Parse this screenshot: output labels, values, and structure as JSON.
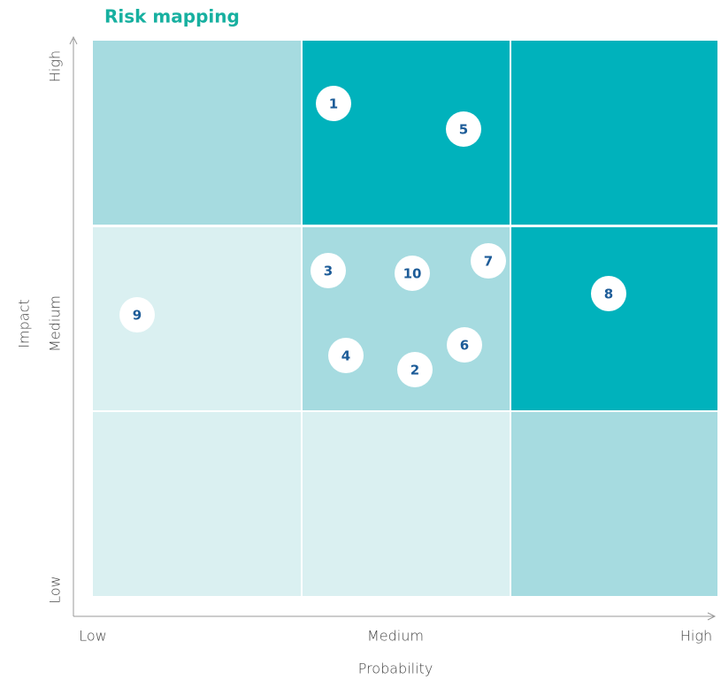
{
  "title": "Risk mapping",
  "axes": {
    "x": {
      "title": "Probability",
      "labels": [
        "Low",
        "Medium",
        "High"
      ]
    },
    "y": {
      "title": "Impact",
      "labels": [
        "Low",
        "Medium",
        "High"
      ]
    }
  },
  "risks": [
    "1",
    "2",
    "3",
    "4",
    "5",
    "6",
    "7",
    "8",
    "9",
    "10"
  ]
}
